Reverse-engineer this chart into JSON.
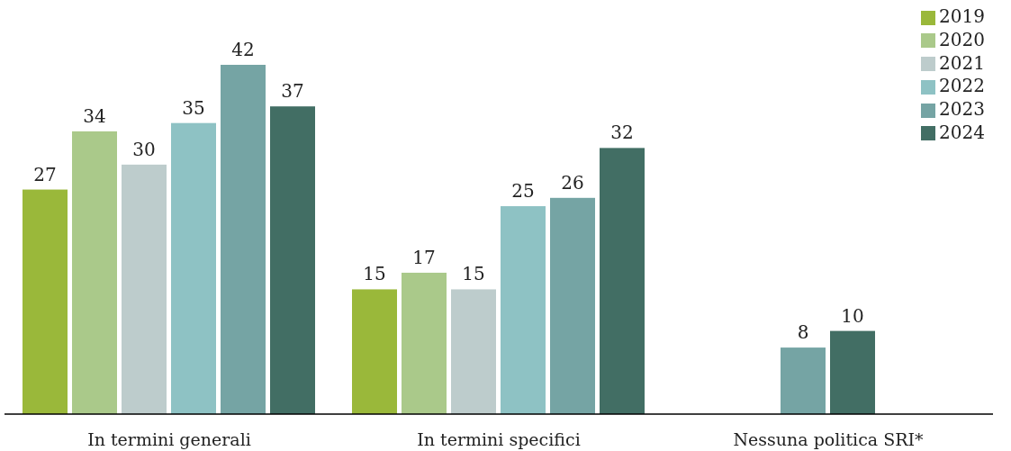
{
  "chart_data": {
    "type": "bar",
    "categories": [
      "In termini generali",
      "In termini specifici",
      "Nessuna politica SRI*"
    ],
    "series": [
      {
        "name": "2019",
        "color": "#9ab83a",
        "values": [
          27,
          15,
          null
        ]
      },
      {
        "name": "2020",
        "color": "#aac98a",
        "values": [
          34,
          17,
          null
        ]
      },
      {
        "name": "2021",
        "color": "#bdcccc",
        "values": [
          30,
          15,
          null
        ]
      },
      {
        "name": "2022",
        "color": "#8ec2c4",
        "values": [
          35,
          25,
          null
        ]
      },
      {
        "name": "2023",
        "color": "#75a4a4",
        "values": [
          42,
          26,
          8
        ]
      },
      {
        "name": "2024",
        "color": "#426e64",
        "values": [
          37,
          32,
          10
        ]
      }
    ],
    "data_labels": true,
    "legend": "top right"
  }
}
